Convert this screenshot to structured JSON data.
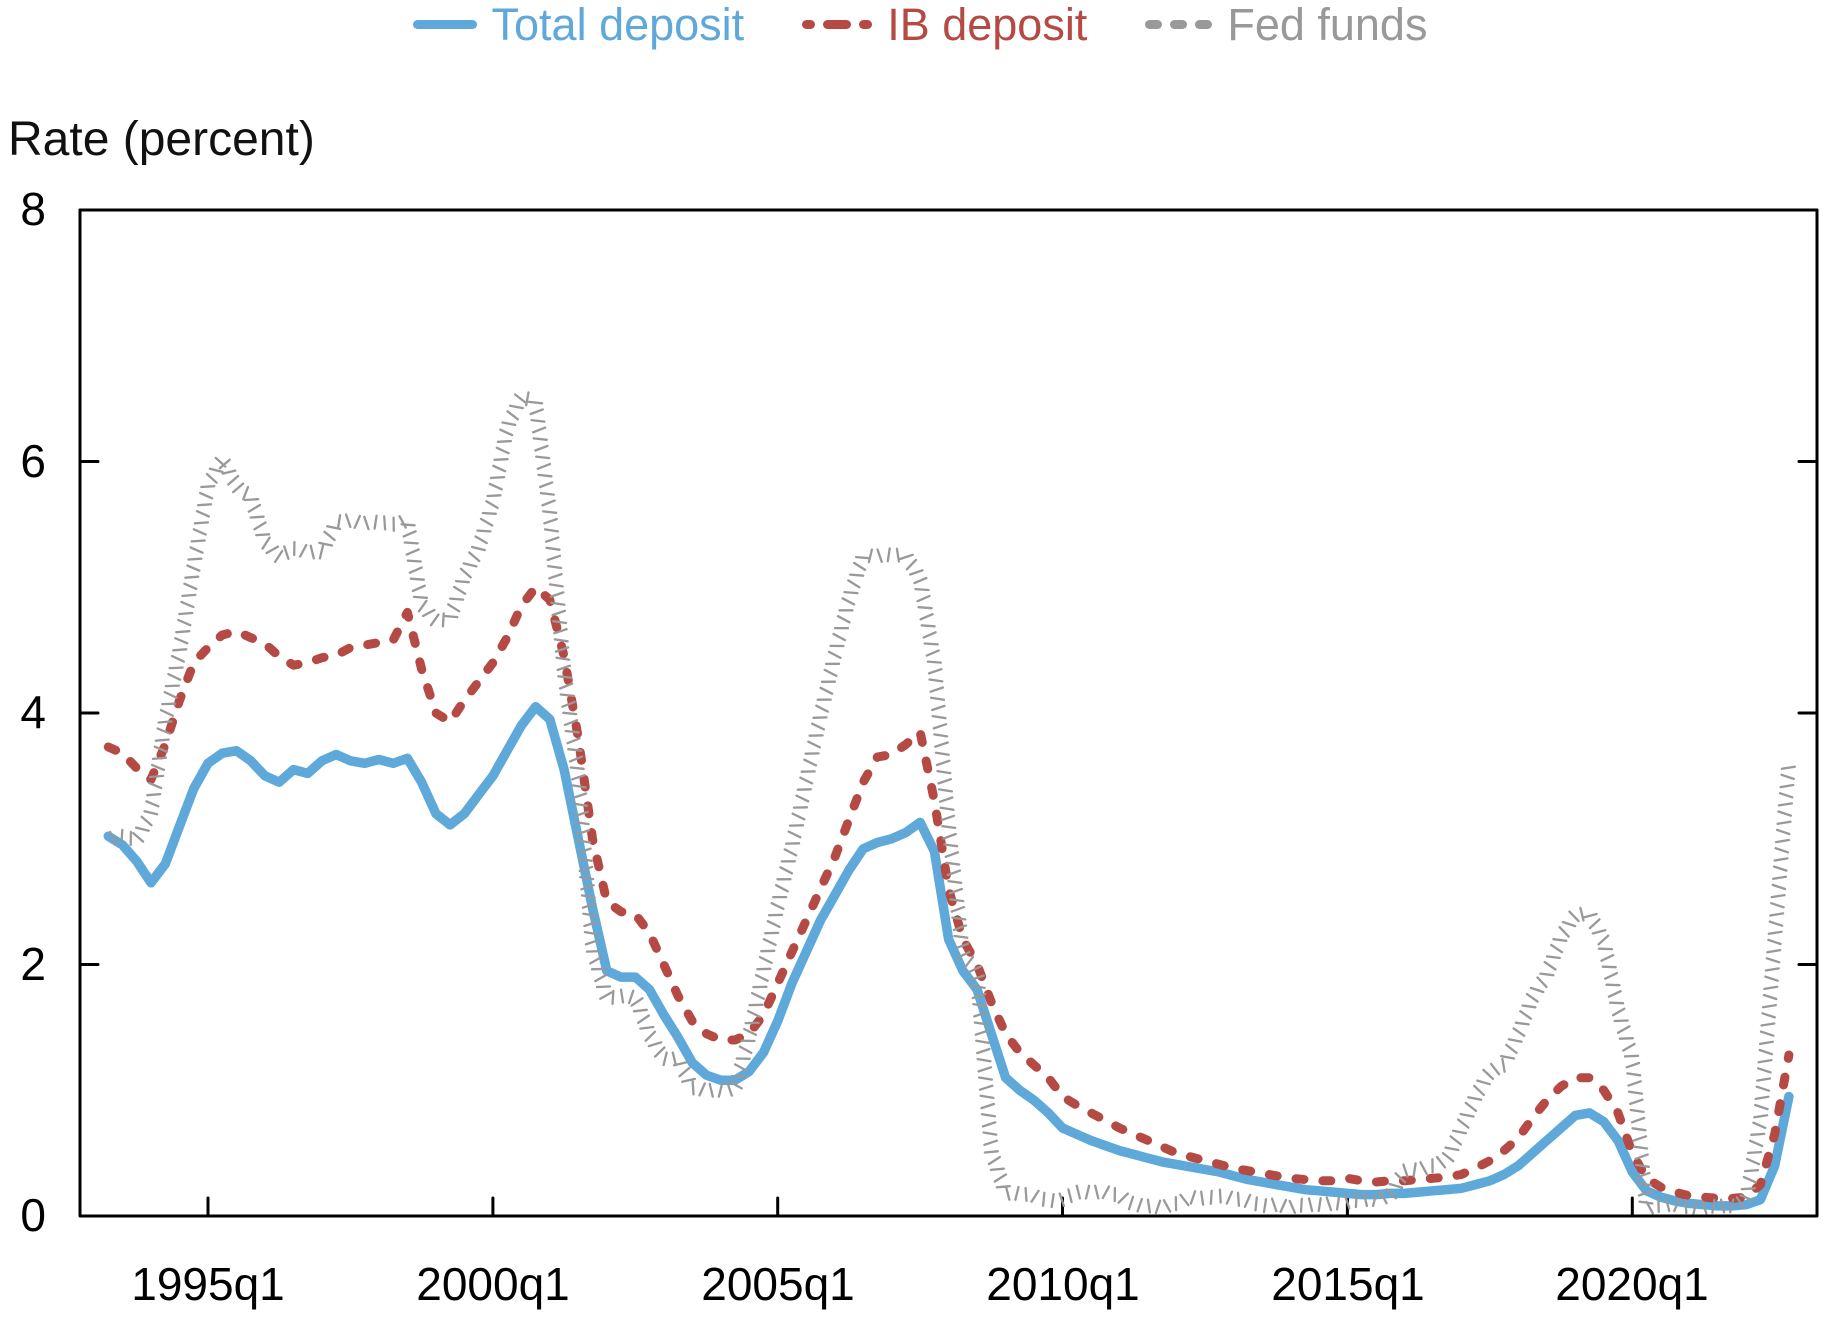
{
  "chart_data": {
    "type": "line",
    "title": "",
    "ylabel": "Rate (percent)",
    "xlabel": "",
    "x_unit": "quarter",
    "x_start": 1993.25,
    "x_step": 0.25,
    "xlim": [
      1992.75,
      2023.24
    ],
    "ylim": [
      0,
      8
    ],
    "grid": false,
    "legend_position": "top-center",
    "axis_color": "#000000",
    "x_tick_labels": [
      "1995q1",
      "2000q1",
      "2005q1",
      "2010q1",
      "2015q1",
      "2020q1"
    ],
    "x_tick_values": [
      1995,
      2000,
      2005,
      2010,
      2015,
      2020
    ],
    "y_tick_labels": [
      "0",
      "2",
      "4",
      "6",
      "8"
    ],
    "y_tick_values": [
      0,
      2,
      4,
      6,
      8
    ],
    "series": [
      {
        "name": "Total deposit",
        "style": "solid",
        "color": "#5ea8da",
        "values": [
          3.02,
          2.95,
          2.82,
          2.65,
          2.8,
          3.1,
          3.4,
          3.6,
          3.68,
          3.7,
          3.62,
          3.5,
          3.45,
          3.55,
          3.52,
          3.62,
          3.67,
          3.62,
          3.6,
          3.63,
          3.6,
          3.64,
          3.45,
          3.2,
          3.11,
          3.2,
          3.35,
          3.5,
          3.7,
          3.9,
          4.05,
          3.95,
          3.55,
          3.0,
          2.45,
          1.95,
          1.9,
          1.9,
          1.8,
          1.6,
          1.42,
          1.22,
          1.12,
          1.08,
          1.08,
          1.15,
          1.3,
          1.55,
          1.85,
          2.1,
          2.35,
          2.55,
          2.75,
          2.92,
          2.97,
          3.0,
          3.05,
          3.13,
          2.9,
          2.2,
          1.95,
          1.8,
          1.45,
          1.1,
          1.0,
          0.92,
          0.82,
          0.7,
          0.65,
          0.6,
          0.56,
          0.52,
          0.49,
          0.46,
          0.43,
          0.41,
          0.39,
          0.37,
          0.35,
          0.32,
          0.29,
          0.27,
          0.25,
          0.23,
          0.21,
          0.2,
          0.19,
          0.18,
          0.17,
          0.17,
          0.18,
          0.18,
          0.19,
          0.2,
          0.21,
          0.22,
          0.25,
          0.28,
          0.33,
          0.4,
          0.5,
          0.6,
          0.7,
          0.8,
          0.82,
          0.75,
          0.6,
          0.35,
          0.2,
          0.15,
          0.12,
          0.1,
          0.09,
          0.08,
          0.08,
          0.09,
          0.13,
          0.4,
          0.95
        ]
      },
      {
        "name": "IB deposit",
        "style": "dashed",
        "color": "#b54a45",
        "values": [
          3.73,
          3.68,
          3.56,
          3.47,
          3.75,
          4.1,
          4.4,
          4.52,
          4.62,
          4.65,
          4.6,
          4.55,
          4.45,
          4.38,
          4.4,
          4.44,
          4.46,
          4.52,
          4.54,
          4.56,
          4.58,
          4.8,
          4.35,
          4.0,
          3.93,
          4.1,
          4.25,
          4.4,
          4.6,
          4.85,
          5.0,
          4.9,
          4.45,
          3.8,
          3.0,
          2.5,
          2.42,
          2.4,
          2.25,
          2.0,
          1.75,
          1.55,
          1.45,
          1.4,
          1.4,
          1.45,
          1.6,
          1.85,
          2.1,
          2.35,
          2.6,
          2.85,
          3.15,
          3.45,
          3.65,
          3.67,
          3.75,
          3.85,
          3.3,
          2.6,
          2.2,
          2.0,
          1.7,
          1.45,
          1.3,
          1.2,
          1.1,
          0.95,
          0.88,
          0.82,
          0.76,
          0.7,
          0.65,
          0.6,
          0.55,
          0.5,
          0.47,
          0.44,
          0.41,
          0.38,
          0.36,
          0.34,
          0.32,
          0.3,
          0.29,
          0.28,
          0.28,
          0.3,
          0.28,
          0.27,
          0.28,
          0.28,
          0.29,
          0.3,
          0.31,
          0.33,
          0.38,
          0.44,
          0.52,
          0.62,
          0.78,
          0.92,
          1.03,
          1.1,
          1.1,
          1.0,
          0.82,
          0.5,
          0.3,
          0.23,
          0.19,
          0.16,
          0.15,
          0.14,
          0.14,
          0.15,
          0.25,
          0.65,
          1.28
        ]
      },
      {
        "name": "Fed funds",
        "style": "hatched",
        "color": "#999999",
        "values": [
          3.0,
          3.02,
          2.99,
          3.21,
          3.94,
          4.49,
          5.17,
          5.81,
          6.02,
          5.8,
          5.72,
          5.36,
          5.24,
          5.31,
          5.28,
          5.28,
          5.52,
          5.53,
          5.51,
          5.52,
          5.5,
          5.53,
          4.86,
          4.73,
          4.75,
          5.09,
          5.31,
          5.68,
          6.27,
          6.52,
          6.47,
          5.59,
          4.33,
          3.5,
          2.13,
          1.73,
          1.75,
          1.74,
          1.44,
          1.25,
          1.25,
          1.02,
          1.0,
          1.0,
          1.01,
          1.43,
          1.95,
          2.47,
          2.94,
          3.46,
          3.98,
          4.46,
          4.91,
          5.25,
          5.25,
          5.26,
          5.25,
          5.07,
          4.4,
          3.1,
          2.08,
          1.94,
          0.51,
          0.18,
          0.18,
          0.16,
          0.12,
          0.13,
          0.19,
          0.19,
          0.19,
          0.16,
          0.09,
          0.08,
          0.07,
          0.1,
          0.15,
          0.14,
          0.16,
          0.14,
          0.12,
          0.08,
          0.09,
          0.07,
          0.09,
          0.09,
          0.1,
          0.11,
          0.13,
          0.13,
          0.16,
          0.36,
          0.37,
          0.4,
          0.45,
          0.7,
          0.95,
          1.15,
          1.2,
          1.45,
          1.74,
          1.92,
          2.22,
          2.4,
          2.4,
          2.19,
          1.64,
          1.25,
          0.06,
          0.09,
          0.09,
          0.07,
          0.07,
          0.08,
          0.08,
          0.12,
          0.77,
          2.2,
          3.62
        ]
      }
    ]
  }
}
